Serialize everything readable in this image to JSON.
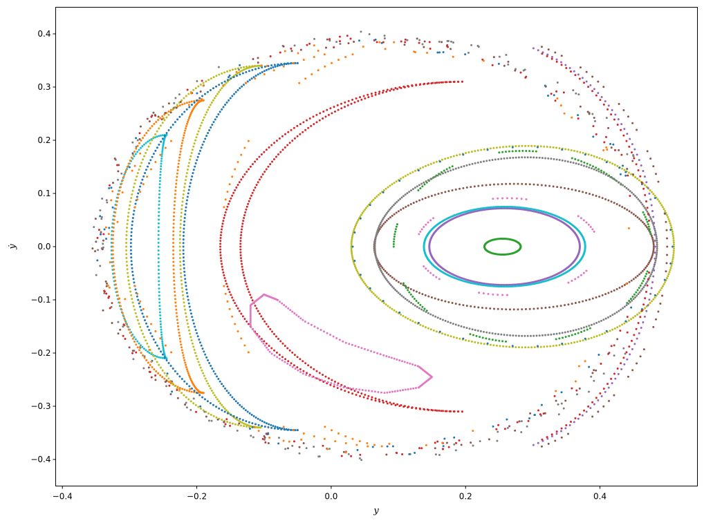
{
  "chart_data": {
    "type": "scatter",
    "title": "",
    "xlabel": "y",
    "ylabel": "ẏ",
    "xlim": [
      -0.41,
      0.545
    ],
    "ylim": [
      -0.45,
      0.45
    ],
    "xticks": [
      -0.4,
      -0.2,
      0.0,
      0.2,
      0.4
    ],
    "yticks": [
      -0.4,
      -0.3,
      -0.2,
      -0.1,
      0.0,
      0.1,
      0.2,
      0.3,
      0.4
    ],
    "xtick_labels": [
      "−0.4",
      "−0.2",
      "0.0",
      "0.2",
      "0.4"
    ],
    "ytick_labels": [
      "−0.4",
      "−0.3",
      "−0.2",
      "−0.1",
      "0.0",
      "0.1",
      "0.2",
      "0.3",
      "0.4"
    ],
    "grid": false,
    "colors": {
      "tab-blue": "#1f77b4",
      "tab-orange": "#ff7f0e",
      "tab-green": "#2ca02c",
      "tab-red": "#d62728",
      "tab-purple": "#9467bd",
      "tab-brown": "#8c564b",
      "tab-pink": "#e377c2",
      "tab-gray": "#7f7f7f",
      "tab-olive": "#bcbd22",
      "tab-cyan": "#17becf"
    },
    "series": [
      {
        "color": "#2ca02c",
        "shape": "ellipse",
        "cx": 0.255,
        "cy": 0.0,
        "rx": 0.027,
        "ry": 0.015,
        "n": 120,
        "arcs": null
      },
      {
        "color": "#9467bd",
        "shape": "ellipse",
        "cx": 0.258,
        "cy": 0.0,
        "rx": 0.112,
        "ry": 0.072,
        "n": 300,
        "arcs": null
      },
      {
        "color": "#17becf",
        "shape": "ellipse",
        "cx": 0.258,
        "cy": 0.0,
        "rx": 0.12,
        "ry": 0.075,
        "n": 320,
        "arcs": null
      },
      {
        "color": "#e377c2",
        "shape": "ellipse",
        "cx": 0.262,
        "cy": 0.0,
        "rx": 0.136,
        "ry": 0.091,
        "n": 120,
        "arcs": [
          [
            0.05,
            0.11
          ],
          [
            0.21,
            0.28
          ],
          [
            0.4,
            0.46
          ],
          [
            0.56,
            0.62
          ],
          [
            0.7,
            0.75
          ],
          [
            0.86,
            0.92
          ]
        ]
      },
      {
        "color": "#8c564b",
        "shape": "ellipse",
        "cx": 0.272,
        "cy": 0.0,
        "rx": 0.208,
        "ry": 0.118,
        "n": 220,
        "arcs": null
      },
      {
        "color": "#2ca02c",
        "shape": "ellipse",
        "cx": 0.285,
        "cy": 0.0,
        "rx": 0.192,
        "ry": 0.18,
        "n": 240,
        "arcs": [
          [
            0.02,
            0.06
          ],
          [
            0.11,
            0.19
          ],
          [
            0.23,
            0.28
          ],
          [
            0.34,
            0.4
          ],
          [
            0.46,
            0.5
          ],
          [
            0.56,
            0.62
          ],
          [
            0.68,
            0.73
          ],
          [
            0.79,
            0.84
          ],
          [
            0.9,
            0.96
          ]
        ]
      },
      {
        "color": "#7f7f7f",
        "shape": "pear",
        "cx": 0.275,
        "cy": 0.0,
        "rx": 0.21,
        "ry": 0.18,
        "skew": 0.14,
        "n": 300,
        "arcs": null
      },
      {
        "color": "#bcbd22",
        "shape": "pear",
        "cx": 0.27,
        "cy": 0.0,
        "rx": 0.24,
        "ry": 0.205,
        "skew": 0.16,
        "n": 320,
        "arcs": null
      },
      {
        "color": "#1f77b4",
        "shape": "pear",
        "cx": 0.27,
        "cy": 0.0,
        "rx": 0.238,
        "ry": 0.203,
        "skew": 0.16,
        "n": 40,
        "arcs": null
      },
      {
        "color": "#8c564b",
        "shape": "ellipse",
        "cx": 0.23,
        "cy": 0.0,
        "rx": 0.27,
        "ry": 0.395,
        "n": 160,
        "arcs": [
          [
            0.0,
            0.03
          ],
          [
            0.045,
            0.075
          ],
          [
            0.09,
            0.12
          ],
          [
            0.135,
            0.165
          ],
          [
            0.18,
            0.2
          ],
          [
            0.8,
            0.83
          ],
          [
            0.845,
            0.875
          ],
          [
            0.89,
            0.92
          ],
          [
            0.935,
            0.965
          ],
          [
            0.98,
            1.0
          ]
        ]
      },
      {
        "color": "#9467bd",
        "shape": "ellipse",
        "cx": 0.22,
        "cy": 0.0,
        "rx": 0.262,
        "ry": 0.392,
        "n": 220,
        "arcs": [
          [
            0.0,
            0.2
          ],
          [
            0.8,
            1.0
          ]
        ]
      },
      {
        "color": "#d62728",
        "shape": "ellipse",
        "cx": 0.22,
        "cy": 0.0,
        "rx": 0.255,
        "ry": 0.39,
        "n": 200,
        "arcs": [
          [
            0.02,
            0.19
          ],
          [
            0.81,
            0.98
          ]
        ]
      },
      {
        "color": "#17becf",
        "shape": "crescent",
        "cx": -0.245,
        "cy": 0.0,
        "outer_rx": 0.082,
        "inner_rx": 0.012,
        "ry": 0.21,
        "n": 180
      },
      {
        "color": "#ff7f0e",
        "shape": "crescent",
        "cx": -0.19,
        "cy": 0.0,
        "outer_rx": 0.135,
        "inner_rx": 0.045,
        "ry": 0.275,
        "n": 240
      },
      {
        "color": "#bcbd22",
        "shape": "crescent",
        "cx": -0.105,
        "cy": 0.0,
        "outer_rx": 0.2,
        "inner_rx": 0.12,
        "ry": 0.34,
        "n": 300
      },
      {
        "color": "#1f77b4",
        "shape": "crescent",
        "cx": -0.05,
        "cy": 0.0,
        "outer_rx": 0.248,
        "inner_rx": 0.17,
        "ry": 0.345,
        "n": 320
      },
      {
        "color": "#d62728",
        "shape": "crescent",
        "cx": 0.195,
        "cy": 0.0,
        "outer_rx": 0.36,
        "inner_rx": 0.33,
        "ry": 0.31,
        "n": 360
      },
      {
        "color": "#ff7f0e",
        "shape": "crescent_dash",
        "cx": 0.12,
        "cy": 0.0,
        "outer_rx": 0.42,
        "inner_rx": 0.285,
        "ry": 0.38,
        "n": 160,
        "arcs": [
          [
            0.05,
            0.1
          ],
          [
            0.16,
            0.22
          ],
          [
            0.28,
            0.34
          ],
          [
            0.42,
            0.48
          ],
          [
            0.52,
            0.58
          ],
          [
            0.66,
            0.72
          ],
          [
            0.78,
            0.84
          ],
          [
            0.9,
            0.95
          ]
        ]
      },
      {
        "color": "#e377c2",
        "shape": "lobe",
        "points": [
          [
            -0.1,
            -0.09
          ],
          [
            -0.12,
            -0.11
          ],
          [
            -0.12,
            -0.15
          ],
          [
            -0.09,
            -0.2
          ],
          [
            -0.04,
            -0.24
          ],
          [
            0.02,
            -0.265
          ],
          [
            0.08,
            -0.275
          ],
          [
            0.13,
            -0.265
          ],
          [
            0.15,
            -0.245
          ],
          [
            0.13,
            -0.225
          ],
          [
            0.08,
            -0.205
          ],
          [
            0.02,
            -0.18
          ],
          [
            -0.04,
            -0.14
          ],
          [
            -0.08,
            -0.1
          ],
          [
            -0.1,
            -0.09
          ]
        ],
        "n": 180
      },
      {
        "color": "#7f7f7f",
        "shape": "ring",
        "cx": 0.07,
        "cy": 0.0,
        "rx": 0.43,
        "ry": 0.405,
        "n": 150
      },
      {
        "color": "#8c564b",
        "shape": "ring",
        "cx": 0.065,
        "cy": 0.0,
        "rx": 0.425,
        "ry": 0.4,
        "n": 130
      },
      {
        "color": "#d62728",
        "shape": "ring",
        "cx": 0.06,
        "cy": 0.0,
        "rx": 0.418,
        "ry": 0.398,
        "n": 120
      },
      {
        "color": "#1f77b4",
        "shape": "ring",
        "cx": 0.06,
        "cy": 0.0,
        "rx": 0.412,
        "ry": 0.395,
        "n": 70
      },
      {
        "color": "#ff7f0e",
        "shape": "ring",
        "cx": 0.06,
        "cy": 0.0,
        "rx": 0.4,
        "ry": 0.39,
        "n": 70
      }
    ]
  }
}
